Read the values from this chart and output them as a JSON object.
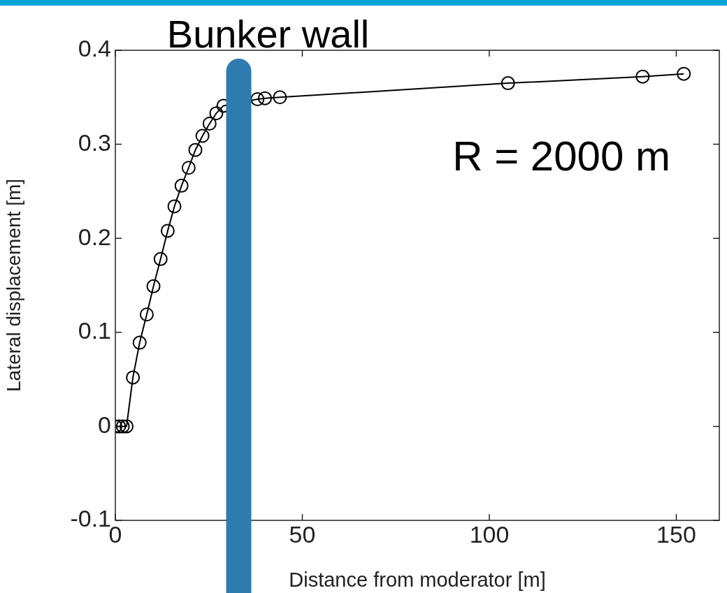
{
  "chart_data": {
    "type": "line",
    "xlabel": "Distance from moderator [m]",
    "ylabel": "Lateral displacement [m]",
    "marker": "circle",
    "line_style": "solid",
    "grid": false,
    "series": [
      {
        "color": "#000000",
        "x": [
          0,
          1,
          2,
          3,
          4.7,
          6.5,
          8.4,
          10.2,
          12.1,
          14,
          15.8,
          17.7,
          19.6,
          21.4,
          23.3,
          25.2,
          27,
          28.9,
          38,
          40,
          44,
          105,
          141,
          152
        ],
        "values": [
          0,
          0,
          0,
          0,
          0.052,
          0.089,
          0.119,
          0.149,
          0.178,
          0.208,
          0.234,
          0.256,
          0.275,
          0.294,
          0.309,
          0.322,
          0.333,
          0.341,
          0.348,
          0.349,
          0.35,
          0.365,
          0.372,
          0.375
        ]
      }
    ],
    "xlim": [
      0,
      161.5
    ],
    "ylim": [
      -0.1,
      0.4
    ],
    "xticks": [
      0,
      50,
      100,
      150
    ],
    "yticks": [
      -0.1,
      0,
      0.1,
      0.2,
      0.3,
      0.4
    ],
    "ref_lines": [
      {
        "axis": "x",
        "value": 33,
        "label": "Bunker wall",
        "color": "#2e7bb0"
      }
    ],
    "annotations": [
      "R = 2000 m"
    ]
  }
}
